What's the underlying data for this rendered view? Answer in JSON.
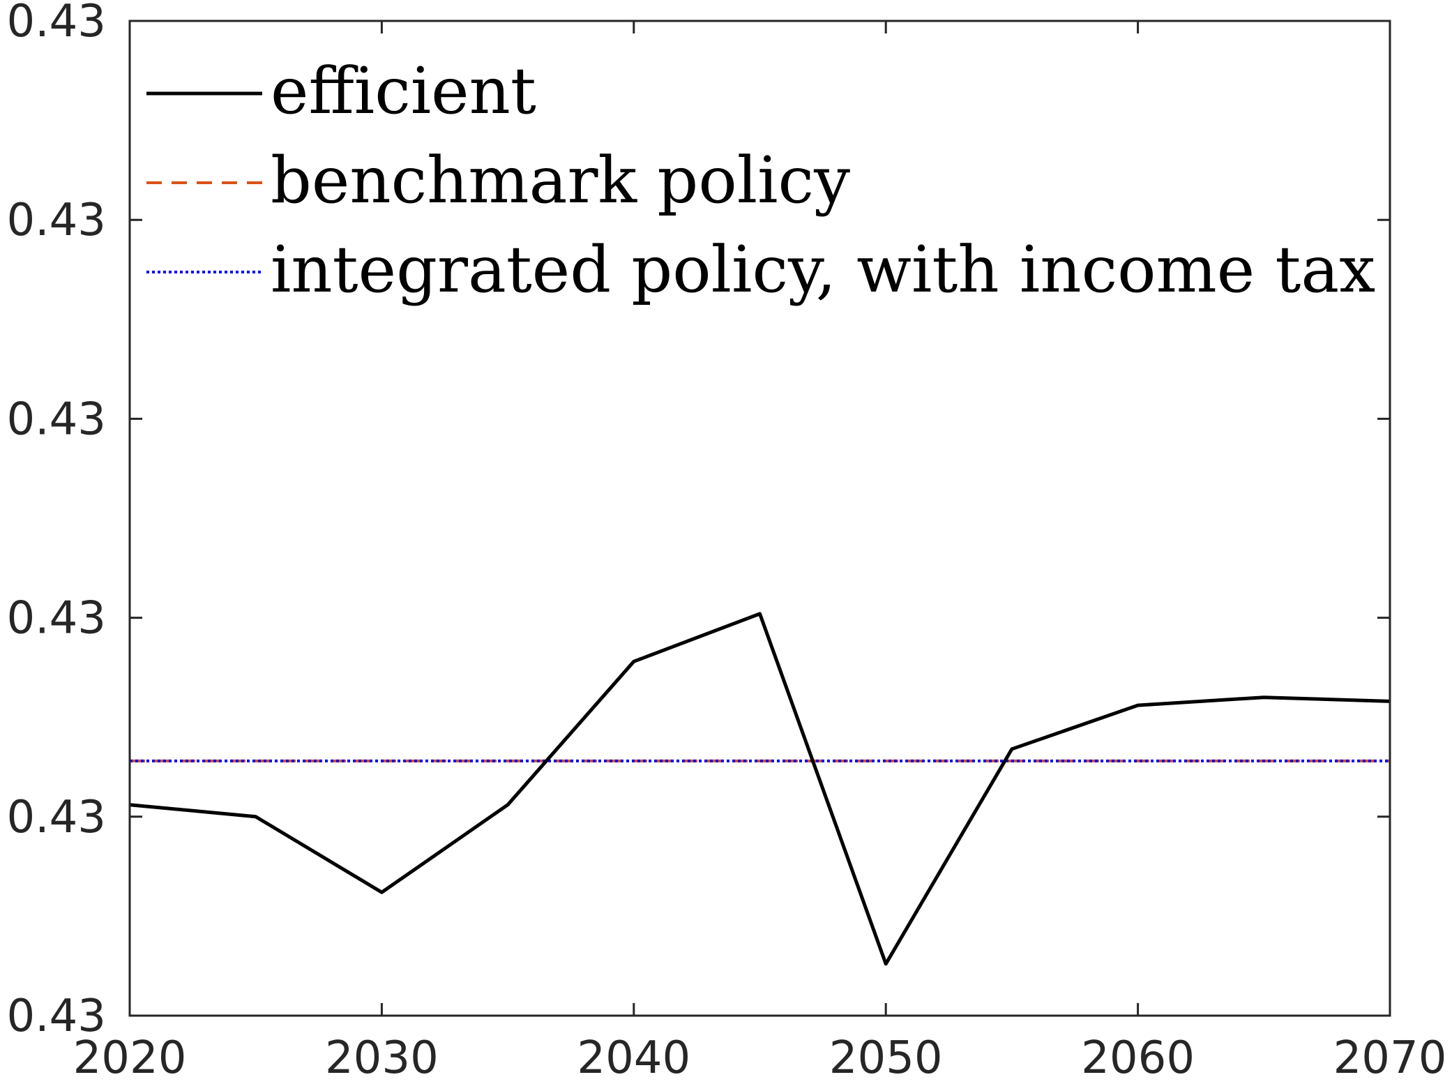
{
  "chart_data": {
    "type": "line",
    "title": "",
    "xlabel": "",
    "ylabel": "",
    "xlim": [
      2020,
      2070
    ],
    "ylim": [
      0.42995,
      0.4302
    ],
    "grid": false,
    "legend_position": "top-left",
    "x_ticks": [
      2020,
      2030,
      2040,
      2050,
      2060,
      2070
    ],
    "x_tick_labels": [
      "2020",
      "2030",
      "2040",
      "2050",
      "2060",
      "2070"
    ],
    "y_ticks": [
      0.42995,
      0.43,
      0.43005,
      0.4301,
      0.43015,
      0.4302
    ],
    "y_tick_labels": [
      "0.43",
      "0.43",
      "0.43",
      "0.43",
      "0.43",
      "0.43"
    ],
    "series": [
      {
        "name": "efficient",
        "color": "#000000",
        "style": "solid",
        "x": [
          2020,
          2025,
          2030,
          2035,
          2040,
          2045,
          2050,
          2055,
          2060,
          2065,
          2070
        ],
        "y": [
          0.430003,
          0.43,
          0.429981,
          0.430003,
          0.430039,
          0.430051,
          0.429963,
          0.430017,
          0.430028,
          0.43003,
          0.430029
        ]
      },
      {
        "name": "benchmark policy",
        "color": "#D95319",
        "style": "dashed",
        "x": [
          2020,
          2025,
          2030,
          2035,
          2040,
          2045,
          2050,
          2055,
          2060,
          2065,
          2070
        ],
        "y": [
          0.430014,
          0.430014,
          0.430014,
          0.430014,
          0.430014,
          0.430014,
          0.430014,
          0.430014,
          0.430014,
          0.430014,
          0.430014
        ]
      },
      {
        "name": "integrated policy, with income tax",
        "color": "#0000FF",
        "style": "dotted",
        "x": [
          2020,
          2025,
          2030,
          2035,
          2040,
          2045,
          2050,
          2055,
          2060,
          2065,
          2070
        ],
        "y": [
          0.430014,
          0.430014,
          0.430014,
          0.430014,
          0.430014,
          0.430014,
          0.430014,
          0.430014,
          0.430014,
          0.430014,
          0.430014
        ]
      }
    ]
  }
}
